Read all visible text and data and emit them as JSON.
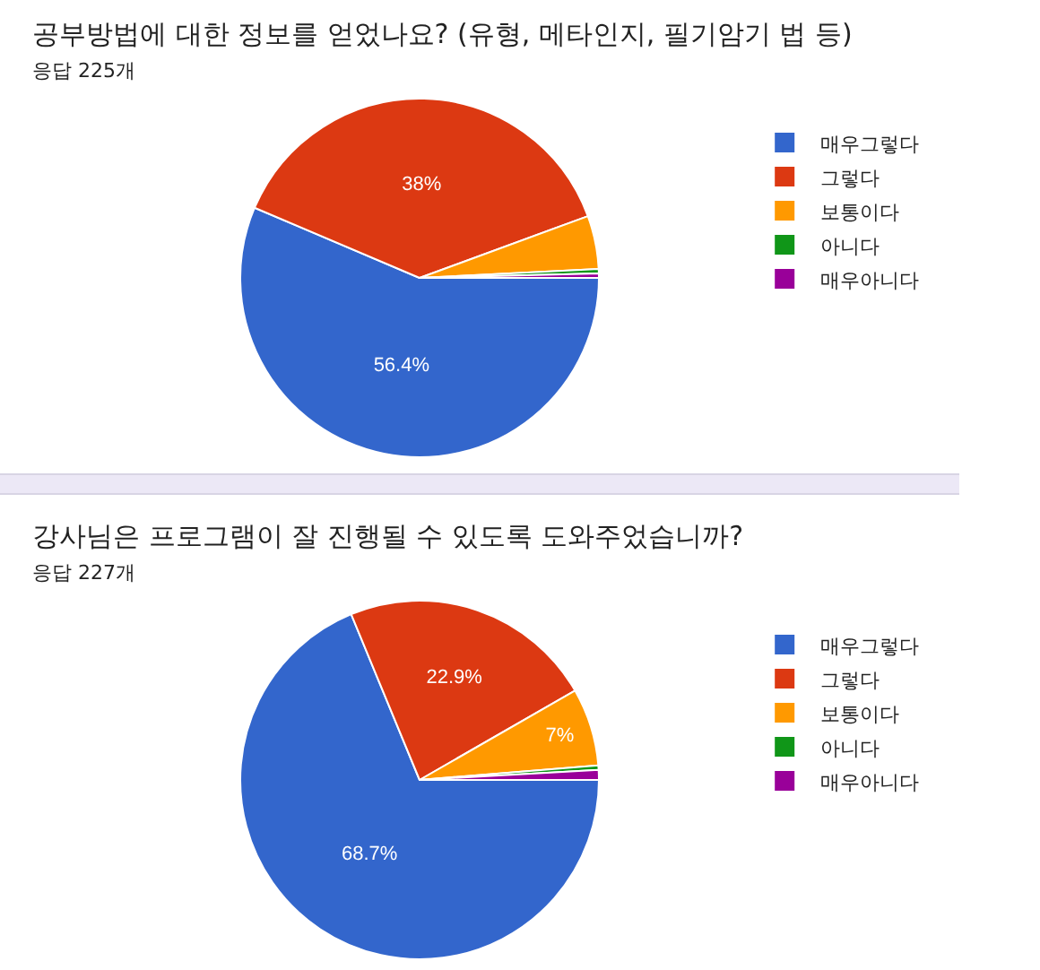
{
  "chart_data": [
    {
      "type": "pie",
      "title": "공부방법에 대한 정보를 얻었나요? (유형, 메타인지, 필기암기 법 등)",
      "subtitle": "응답 225개",
      "categories": [
        "매우그렇다",
        "그렇다",
        "보통이다",
        "아니다",
        "매우아니다"
      ],
      "values": [
        56.4,
        38,
        4.8,
        0.4,
        0.4
      ],
      "colors": [
        "#3366cc",
        "#dc3912",
        "#ff9900",
        "#109618",
        "#990099"
      ],
      "value_labels": [
        "56.4%",
        "38%",
        null,
        null,
        null
      ],
      "legend": "right"
    },
    {
      "type": "pie",
      "title": "강사님은 프로그램이 잘 진행될 수 있도록 도와주었습니까?",
      "subtitle": "응답 227개",
      "categories": [
        "매우그렇다",
        "그렇다",
        "보통이다",
        "아니다",
        "매우아니다"
      ],
      "values": [
        68.7,
        22.9,
        7,
        0.4,
        0.9
      ],
      "colors": [
        "#3366cc",
        "#dc3912",
        "#ff9900",
        "#109618",
        "#990099"
      ],
      "value_labels": [
        "68.7%",
        "22.9%",
        "7%",
        null,
        null
      ],
      "legend": "right"
    }
  ]
}
